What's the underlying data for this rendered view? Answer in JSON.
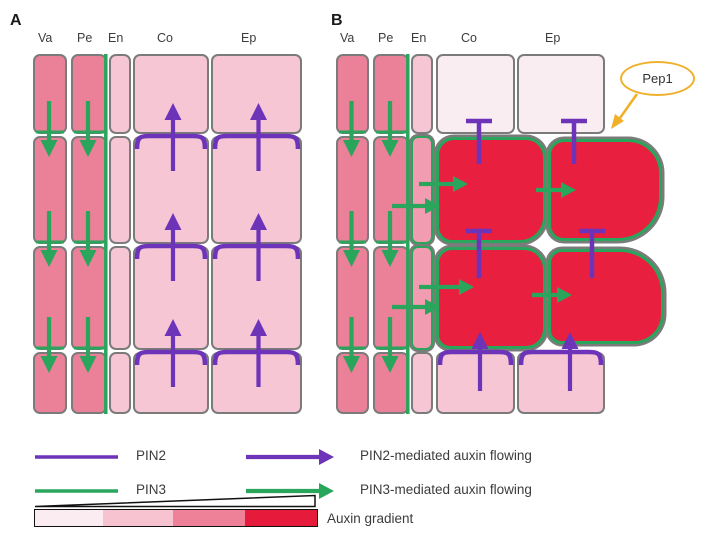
{
  "panels": [
    {
      "label": "A",
      "columns": [
        "Va",
        "Pe",
        "En",
        "Co",
        "Ep"
      ]
    },
    {
      "label": "B",
      "columns": [
        "Va",
        "Pe",
        "En",
        "Co",
        "Ep"
      ],
      "callout_label": "Pep1"
    }
  ],
  "legend": {
    "rows": [
      {
        "line_label": "PIN2",
        "arrow_label": "PIN2-mediated auxin flowing"
      },
      {
        "line_label": "PIN3",
        "arrow_label": "PIN3-mediated auxin flowing"
      }
    ],
    "gradient_label": "Auxin gradient"
  },
  "colors": {
    "purple": "#6d33b8",
    "green": "#2aa55c",
    "rose": "#ea8198",
    "rose_light": "#f19cb0",
    "pink_light": "#f6c6d4",
    "pink_pale": "#faedf2",
    "red": "#e91f40",
    "cell_border": "#7b7b7b",
    "callout_yellow": "#f0b02a",
    "gradient_steps": [
      "#fbecf1",
      "#f7c3d1",
      "#ee8097",
      "#e61b3c"
    ],
    "text": "#3c3c3c"
  }
}
